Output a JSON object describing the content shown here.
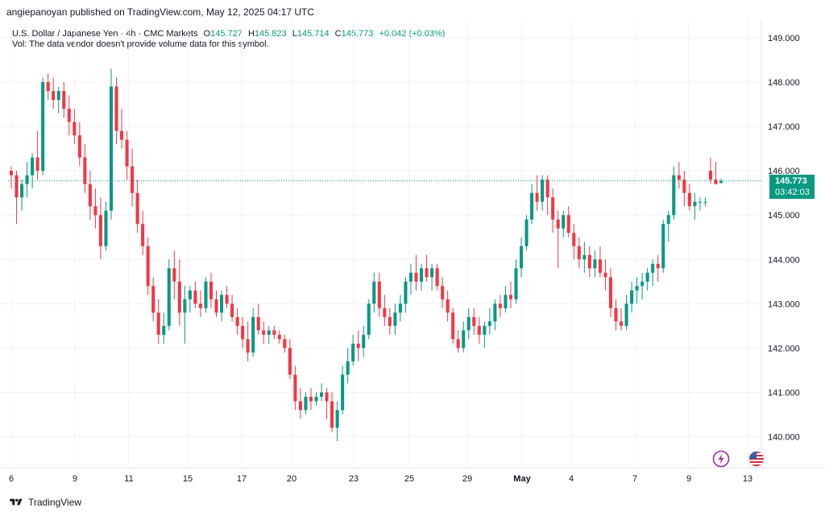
{
  "header": {
    "publisher": "angiepanoyan published on TradingView.com, May 12, 2025 04:17 UTC",
    "symbol": "U.S. Dollar / Japanese Yen · 4h · CMC Markets",
    "o_label": "O",
    "o_value": "145.727",
    "h_label": "H",
    "h_value": "145.823",
    "l_label": "L",
    "l_value": "145.714",
    "c_label": "C",
    "c_value": "145.773",
    "change": "+0.042 (+0.03%)",
    "vol_note": "Vol: The data vendor doesn't provide volume data for this symbol."
  },
  "price_tag": {
    "price": "145.773",
    "countdown": "03:42:03"
  },
  "footer": {
    "brand": "TradingView"
  },
  "icons": {
    "lightning": "lightning-icon",
    "flag": "us-flag-icon"
  },
  "colors": {
    "up": "#089981",
    "down": "#f23645",
    "grid": "#f0f3fa",
    "text": "#131722"
  },
  "chart_data": {
    "type": "candlestick",
    "ylim": [
      139.3,
      149.4
    ],
    "y_ticks": [
      "149.000",
      "148.000",
      "147.000",
      "146.000",
      "145.000",
      "144.000",
      "143.000",
      "142.000",
      "141.000",
      "140.000"
    ],
    "x_ticks": [
      "6",
      "9",
      "11",
      "15",
      "17",
      "20",
      "23",
      "25",
      "29",
      "May",
      "4",
      "7",
      "9",
      "13"
    ],
    "last_price": 145.773,
    "ohlc": [
      [
        146.0,
        146.1,
        145.6,
        145.9
      ],
      [
        145.9,
        146.0,
        144.8,
        145.4
      ],
      [
        145.4,
        145.8,
        145.1,
        145.7
      ],
      [
        145.7,
        146.2,
        145.4,
        145.9
      ],
      [
        145.9,
        146.4,
        145.6,
        146.3
      ],
      [
        146.3,
        146.9,
        145.8,
        146.0
      ],
      [
        146.0,
        148.1,
        145.9,
        148.0
      ],
      [
        148.0,
        148.2,
        147.6,
        147.8
      ],
      [
        147.8,
        148.1,
        147.4,
        147.6
      ],
      [
        147.6,
        147.9,
        147.3,
        147.8
      ],
      [
        147.8,
        148.0,
        147.2,
        147.4
      ],
      [
        147.4,
        147.7,
        146.8,
        147.1
      ],
      [
        147.1,
        147.4,
        146.6,
        146.8
      ],
      [
        146.8,
        147.1,
        146.1,
        146.3
      ],
      [
        146.3,
        146.6,
        145.5,
        145.7
      ],
      [
        145.7,
        146.0,
        144.9,
        145.2
      ],
      [
        145.2,
        145.6,
        144.7,
        145.0
      ],
      [
        145.0,
        145.4,
        144.0,
        144.3
      ],
      [
        144.3,
        145.3,
        144.2,
        145.1
      ],
      [
        145.1,
        148.3,
        144.9,
        147.9
      ],
      [
        147.9,
        148.1,
        146.6,
        146.9
      ],
      [
        146.9,
        147.4,
        146.5,
        146.7
      ],
      [
        146.7,
        146.9,
        145.8,
        146.1
      ],
      [
        146.1,
        146.5,
        145.2,
        145.5
      ],
      [
        145.5,
        145.8,
        144.6,
        144.8
      ],
      [
        144.8,
        145.1,
        144.1,
        144.3
      ],
      [
        144.3,
        144.5,
        143.2,
        143.4
      ],
      [
        143.4,
        143.6,
        142.6,
        142.8
      ],
      [
        142.8,
        143.1,
        142.1,
        142.3
      ],
      [
        142.3,
        142.8,
        142.1,
        142.5
      ],
      [
        142.5,
        144.0,
        142.4,
        143.8
      ],
      [
        143.8,
        144.2,
        143.1,
        143.5
      ],
      [
        143.5,
        144.0,
        142.5,
        142.8
      ],
      [
        142.8,
        143.4,
        142.1,
        143.1
      ],
      [
        143.1,
        143.4,
        142.8,
        143.3
      ],
      [
        143.3,
        143.5,
        142.9,
        143.0
      ],
      [
        143.0,
        143.3,
        142.7,
        142.9
      ],
      [
        142.9,
        143.6,
        142.8,
        143.5
      ],
      [
        143.5,
        143.7,
        142.9,
        143.1
      ],
      [
        143.1,
        143.3,
        142.7,
        142.8
      ],
      [
        142.8,
        143.3,
        142.6,
        143.2
      ],
      [
        143.2,
        143.4,
        142.9,
        143.0
      ],
      [
        143.0,
        143.2,
        142.6,
        142.7
      ],
      [
        142.7,
        142.9,
        142.3,
        142.5
      ],
      [
        142.5,
        142.7,
        142.0,
        142.2
      ],
      [
        142.2,
        142.6,
        141.7,
        141.9
      ],
      [
        141.9,
        142.9,
        141.8,
        142.7
      ],
      [
        142.7,
        143.0,
        142.3,
        142.4
      ],
      [
        142.4,
        142.6,
        142.1,
        142.3
      ],
      [
        142.3,
        142.5,
        142.1,
        142.4
      ],
      [
        142.4,
        142.5,
        142.2,
        142.3
      ],
      [
        142.3,
        142.4,
        142.1,
        142.2
      ],
      [
        142.2,
        142.3,
        141.9,
        142.0
      ],
      [
        142.0,
        142.2,
        141.3,
        141.4
      ],
      [
        141.4,
        141.6,
        140.6,
        140.8
      ],
      [
        140.8,
        141.1,
        140.4,
        140.6
      ],
      [
        140.6,
        141.0,
        140.5,
        140.9
      ],
      [
        140.9,
        141.1,
        140.6,
        140.8
      ],
      [
        140.8,
        141.0,
        140.7,
        140.9
      ],
      [
        140.9,
        141.2,
        140.8,
        141.0
      ],
      [
        141.0,
        141.1,
        140.4,
        140.8
      ],
      [
        140.8,
        141.0,
        140.1,
        140.2
      ],
      [
        140.2,
        140.8,
        139.9,
        140.6
      ],
      [
        140.6,
        141.6,
        140.5,
        141.4
      ],
      [
        141.4,
        142.0,
        141.2,
        141.7
      ],
      [
        141.7,
        142.3,
        141.6,
        142.1
      ],
      [
        142.1,
        142.4,
        141.7,
        142.0
      ],
      [
        142.0,
        142.5,
        141.8,
        142.3
      ],
      [
        142.3,
        143.1,
        142.2,
        143.0
      ],
      [
        143.0,
        143.7,
        142.8,
        143.5
      ],
      [
        143.5,
        143.7,
        142.7,
        142.9
      ],
      [
        142.9,
        143.2,
        142.5,
        142.7
      ],
      [
        142.7,
        142.9,
        142.3,
        142.5
      ],
      [
        142.5,
        143.0,
        142.3,
        142.8
      ],
      [
        142.8,
        143.2,
        142.6,
        143.0
      ],
      [
        143.0,
        143.6,
        142.8,
        143.5
      ],
      [
        143.5,
        143.9,
        143.2,
        143.7
      ],
      [
        143.7,
        144.1,
        143.3,
        143.5
      ],
      [
        143.5,
        143.9,
        143.3,
        143.8
      ],
      [
        143.8,
        144.1,
        143.5,
        143.6
      ],
      [
        143.6,
        143.9,
        143.3,
        143.8
      ],
      [
        143.8,
        143.9,
        143.3,
        143.4
      ],
      [
        143.4,
        143.6,
        142.9,
        143.1
      ],
      [
        143.1,
        143.3,
        142.6,
        142.8
      ],
      [
        142.8,
        142.9,
        142.1,
        142.2
      ],
      [
        142.2,
        142.4,
        141.9,
        142.0
      ],
      [
        142.0,
        142.6,
        141.9,
        142.4
      ],
      [
        142.4,
        142.9,
        142.2,
        142.7
      ],
      [
        142.7,
        142.9,
        142.3,
        142.5
      ],
      [
        142.5,
        142.7,
        142.1,
        142.3
      ],
      [
        142.3,
        142.6,
        142.0,
        142.5
      ],
      [
        142.5,
        142.9,
        142.3,
        142.6
      ],
      [
        142.6,
        143.1,
        142.4,
        143.0
      ],
      [
        143.0,
        143.2,
        142.7,
        142.9
      ],
      [
        142.9,
        143.4,
        142.8,
        143.2
      ],
      [
        143.2,
        143.5,
        142.9,
        143.1
      ],
      [
        143.1,
        144.0,
        143.0,
        143.8
      ],
      [
        143.8,
        144.5,
        143.6,
        144.3
      ],
      [
        144.3,
        145.0,
        144.2,
        144.9
      ],
      [
        144.9,
        145.7,
        144.8,
        145.5
      ],
      [
        145.5,
        145.9,
        145.1,
        145.3
      ],
      [
        145.3,
        145.9,
        145.1,
        145.8
      ],
      [
        145.8,
        145.9,
        145.0,
        145.4
      ],
      [
        145.4,
        145.6,
        144.6,
        144.9
      ],
      [
        144.9,
        145.1,
        143.8,
        144.7
      ],
      [
        144.7,
        145.1,
        144.5,
        145.0
      ],
      [
        145.0,
        145.2,
        144.5,
        144.6
      ],
      [
        144.6,
        144.8,
        144.0,
        144.3
      ],
      [
        144.3,
        144.5,
        143.8,
        144.0
      ],
      [
        144.0,
        144.4,
        143.7,
        144.1
      ],
      [
        144.1,
        144.3,
        143.6,
        143.8
      ],
      [
        143.8,
        144.2,
        143.6,
        144.0
      ],
      [
        144.0,
        144.3,
        143.6,
        143.7
      ],
      [
        143.7,
        144.0,
        143.3,
        143.6
      ],
      [
        143.6,
        143.8,
        142.7,
        142.9
      ],
      [
        142.9,
        143.1,
        142.4,
        142.6
      ],
      [
        142.6,
        142.9,
        142.4,
        142.5
      ],
      [
        142.5,
        143.2,
        142.4,
        143.0
      ],
      [
        143.0,
        143.5,
        142.8,
        143.3
      ],
      [
        143.3,
        143.6,
        143.0,
        143.4
      ],
      [
        143.4,
        143.7,
        143.1,
        143.5
      ],
      [
        143.5,
        143.8,
        143.3,
        143.7
      ],
      [
        143.7,
        144.0,
        143.4,
        143.9
      ],
      [
        143.9,
        144.1,
        143.5,
        143.8
      ],
      [
        143.8,
        144.9,
        143.7,
        144.8
      ],
      [
        144.8,
        145.1,
        144.4,
        145.0
      ],
      [
        145.0,
        146.1,
        144.9,
        145.9
      ],
      [
        145.9,
        146.2,
        145.6,
        145.8
      ],
      [
        145.8,
        146.0,
        145.2,
        145.5
      ],
      [
        145.5,
        145.7,
        145.1,
        145.2
      ],
      [
        145.2,
        145.5,
        144.9,
        145.3
      ],
      [
        145.3,
        145.4,
        145.1,
        145.3
      ],
      [
        145.3,
        145.4,
        145.2,
        145.3
      ],
      [
        146.0,
        146.3,
        145.7,
        145.8
      ],
      [
        145.8,
        146.2,
        145.7,
        145.7
      ],
      [
        145.727,
        145.823,
        145.714,
        145.773
      ]
    ]
  }
}
